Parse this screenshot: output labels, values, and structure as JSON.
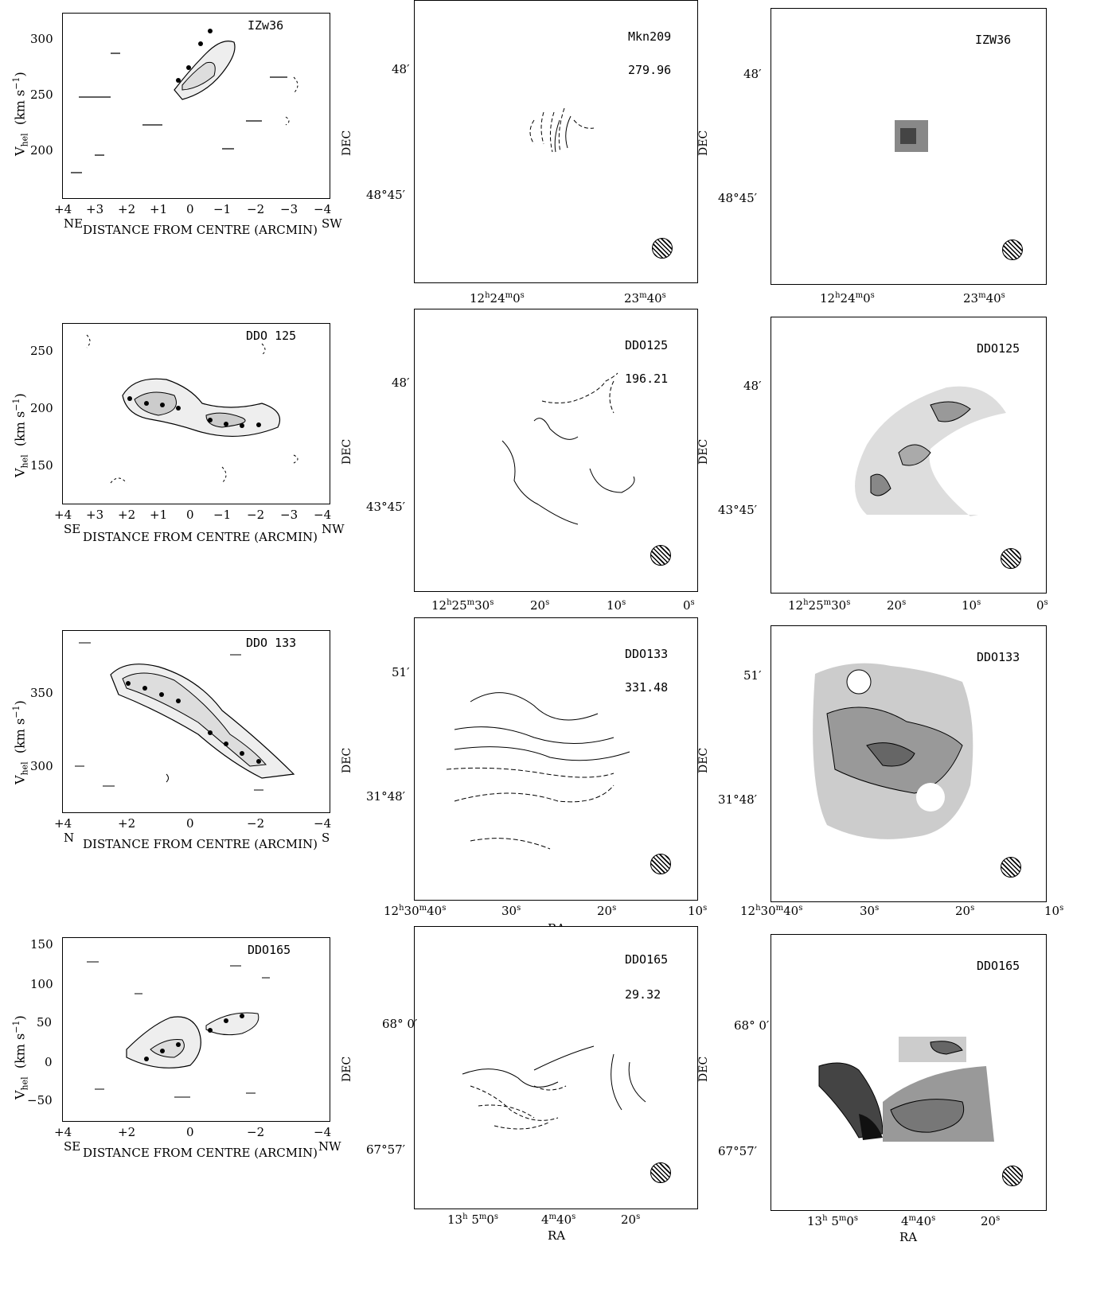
{
  "rows": [
    {
      "pv": {
        "name": "IZw36",
        "y_ticks": [
          "300",
          "250",
          "200"
        ],
        "x_ticks": [
          "+4",
          "+3",
          "+2",
          "+1",
          "0",
          "−1",
          "−2",
          "−3",
          "−4"
        ],
        "left_dir": "NE",
        "right_dir": "SW"
      },
      "vel": {
        "name": "Mkn209",
        "value": "279.96",
        "dec_ticks": [
          "48′",
          "48°45′"
        ],
        "ra_ticks": [
          "12h24m0s",
          "23m40s"
        ]
      },
      "disp": {
        "name": "IZW36",
        "dec_ticks": [
          "48′",
          "48°45′"
        ],
        "ra_ticks": [
          "12h24m0s",
          "23m40s"
        ]
      }
    },
    {
      "pv": {
        "name": "DDO 125",
        "y_ticks": [
          "250",
          "200",
          "150"
        ],
        "x_ticks": [
          "+4",
          "+3",
          "+2",
          "+1",
          "0",
          "−1",
          "−2",
          "−3",
          "−4"
        ],
        "left_dir": "SE",
        "right_dir": "NW"
      },
      "vel": {
        "name": "DDO125",
        "value": "196.21",
        "dec_ticks": [
          "48′",
          "43°45′"
        ],
        "ra_ticks": [
          "12h25m30s",
          "20s",
          "10s",
          "0s"
        ]
      },
      "disp": {
        "name": "DDO125",
        "dec_ticks": [
          "48′",
          "43°45′"
        ],
        "ra_ticks": [
          "12h25m30s",
          "20s",
          "10s",
          "0s"
        ]
      }
    },
    {
      "pv": {
        "name": "DDO 133",
        "y_ticks": [
          "350",
          "300"
        ],
        "x_ticks": [
          "+4",
          "+2",
          "0",
          "−2",
          "−4"
        ],
        "left_dir": "N",
        "right_dir": "S"
      },
      "vel": {
        "name": "DDO133",
        "value": "331.48",
        "dec_ticks": [
          "51′",
          "31°48′"
        ],
        "ra_ticks": [
          "12h30m40s",
          "30s",
          "20s",
          "10s"
        ]
      },
      "disp": {
        "name": "DDO133",
        "dec_ticks": [
          "51′",
          "31°48′"
        ],
        "ra_ticks": [
          "12h30m40s",
          "30s",
          "20s",
          "10s"
        ]
      }
    },
    {
      "pv": {
        "name": "DDO165",
        "y_ticks": [
          "150",
          "100",
          "50",
          "0",
          "−50"
        ],
        "x_ticks": [
          "+4",
          "+2",
          "0",
          "−2",
          "−4"
        ],
        "left_dir": "SE",
        "right_dir": "NW"
      },
      "vel": {
        "name": "DDO165",
        "value": "29.32",
        "dec_ticks": [
          "68° 0′",
          "67°57′"
        ],
        "ra_ticks": [
          "13h 5m0s",
          "4m40s",
          "20s"
        ]
      },
      "disp": {
        "name": "DDO165",
        "dec_ticks": [
          "68° 0′",
          "67°57′"
        ],
        "ra_ticks": [
          "13h 5m0s",
          "4m40s",
          "20s"
        ]
      }
    }
  ],
  "labels": {
    "x_title": "DISTANCE FROM CENTRE (ARCMIN)",
    "y_title_v": "V",
    "y_title_sub": "hel",
    "y_title_units": "(km s",
    "y_title_exp": "−1",
    "y_title_close": ")",
    "dec": "DEC",
    "ra": "RA"
  }
}
